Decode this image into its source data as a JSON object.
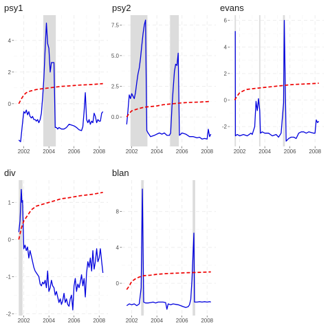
{
  "colors": {
    "series_blue": "#0000dd",
    "series_red": "#ee0000",
    "shading": "#dcdcdc"
  },
  "chart_data": [
    {
      "type": "line",
      "title": "psy1",
      "xlabel": "",
      "ylabel": "",
      "xlim": [
        2001.2,
        2008.7
      ],
      "ylim": [
        -2.7,
        5.6
      ],
      "xticks": [
        2002,
        2004,
        2006,
        2008
      ],
      "yticks": [
        0,
        2,
        4
      ],
      "grid": true,
      "shaded_periods": [
        [
          2003.55,
          2004.55
        ]
      ],
      "series": [
        {
          "color": "#0000dd",
          "style": "solid",
          "x": [
            2001.6,
            2001.75,
            2001.9,
            2002.0,
            2002.1,
            2002.2,
            2002.3,
            2002.4,
            2002.5,
            2002.6,
            2002.7,
            2002.8,
            2002.9,
            2003.0,
            2003.1,
            2003.2,
            2003.3,
            2003.4,
            2003.5,
            2003.6,
            2003.7,
            2003.8,
            2003.9,
            2004.0,
            2004.1,
            2004.2,
            2004.3,
            2004.4,
            2004.5,
            2004.6,
            2004.7,
            2004.8,
            2005.0,
            2005.2,
            2005.4,
            2005.6,
            2005.8,
            2006.0,
            2006.2,
            2006.4,
            2006.6,
            2006.7,
            2006.8,
            2006.9,
            2007.0,
            2007.1,
            2007.2,
            2007.3,
            2007.4,
            2007.5,
            2007.6,
            2007.7,
            2007.8,
            2007.9,
            2008.0,
            2008.1,
            2008.2,
            2008.3
          ],
          "y": [
            -2.3,
            -2.4,
            -1.2,
            -0.5,
            -0.6,
            -0.4,
            -0.7,
            -0.5,
            -0.8,
            -0.9,
            -0.8,
            -1.0,
            -1.0,
            -1.1,
            -1.0,
            -1.2,
            -1.0,
            -0.6,
            0.4,
            1.6,
            3.5,
            5.1,
            3.8,
            3.5,
            2.0,
            2.6,
            2.6,
            2.6,
            -1.5,
            -1.5,
            -1.6,
            -1.5,
            -1.6,
            -1.6,
            -1.5,
            -1.3,
            -1.35,
            -1.4,
            -1.5,
            -1.65,
            -1.7,
            -1.45,
            -0.5,
            0.7,
            -1.0,
            -1.2,
            -1.0,
            -1.3,
            -1.1,
            -1.2,
            -0.6,
            -0.8,
            -1.2,
            -1.0,
            -1.1,
            -1.1,
            -0.6,
            -0.5
          ]
        },
        {
          "color": "#ee0000",
          "style": "dashed",
          "x": [
            2001.6,
            2001.8,
            2002.0,
            2002.2,
            2002.5,
            2003.0,
            2003.5,
            2004.0,
            2004.5,
            2005.0,
            2005.5,
            2006.0,
            2006.5,
            2007.0,
            2007.5,
            2008.0,
            2008.3
          ],
          "y": [
            0.0,
            0.3,
            0.55,
            0.7,
            0.8,
            0.9,
            0.95,
            1.0,
            1.05,
            1.1,
            1.12,
            1.15,
            1.18,
            1.2,
            1.22,
            1.25,
            1.27
          ]
        }
      ]
    },
    {
      "type": "line",
      "title": "psy2",
      "xlabel": "",
      "ylabel": "",
      "xlim": [
        2001.2,
        2008.7
      ],
      "ylim": [
        -2.4,
        8.3
      ],
      "xticks": [
        2002,
        2004,
        2006,
        2008
      ],
      "yticks": [
        0.0,
        2.5,
        5.0,
        7.5
      ],
      "grid": true,
      "shaded_periods": [
        [
          2001.9,
          2003.25
        ],
        [
          2005.05,
          2005.75
        ]
      ],
      "series": [
        {
          "color": "#0000dd",
          "style": "solid",
          "x": [
            2001.6,
            2001.7,
            2001.8,
            2001.9,
            2002.0,
            2002.1,
            2002.2,
            2002.3,
            2002.4,
            2002.5,
            2002.6,
            2002.7,
            2002.8,
            2002.9,
            2003.0,
            2003.1,
            2003.2,
            2003.3,
            2003.5,
            2003.8,
            2004.0,
            2004.2,
            2004.4,
            2004.6,
            2004.8,
            2005.0,
            2005.1,
            2005.2,
            2005.3,
            2005.4,
            2005.5,
            2005.6,
            2005.7,
            2005.8,
            2005.9,
            2006.0,
            2006.3,
            2006.6,
            2006.9,
            2007.2,
            2007.4,
            2007.6,
            2007.8,
            2008.0,
            2008.1,
            2008.2,
            2008.3
          ],
          "y": [
            -0.6,
            0.5,
            1.8,
            1.5,
            1.9,
            1.7,
            1.5,
            2.0,
            2.8,
            3.5,
            4.0,
            4.8,
            5.8,
            6.8,
            7.5,
            7.9,
            -1.1,
            -1.3,
            -1.6,
            -1.5,
            -1.4,
            -1.3,
            -1.4,
            -1.3,
            -1.5,
            -1.5,
            -1.3,
            0.8,
            2.3,
            3.7,
            4.3,
            4.2,
            5.2,
            -1.5,
            -1.4,
            -1.3,
            -1.4,
            -1.6,
            -1.6,
            -1.7,
            -1.65,
            -1.8,
            -1.75,
            -1.8,
            -1.0,
            -1.6,
            -1.4
          ]
        },
        {
          "color": "#ee0000",
          "style": "dashed",
          "x": [
            2001.6,
            2001.8,
            2002.0,
            2002.3,
            2002.6,
            2003.0,
            2003.5,
            2004.0,
            2004.5,
            2005.0,
            2005.5,
            2006.0,
            2006.5,
            2007.0,
            2007.5,
            2008.0,
            2008.3
          ],
          "y": [
            0.0,
            0.3,
            0.5,
            0.6,
            0.7,
            0.8,
            0.85,
            0.9,
            1.0,
            1.05,
            1.1,
            1.15,
            1.18,
            1.2,
            1.22,
            1.25,
            1.27
          ]
        }
      ]
    },
    {
      "type": "line",
      "title": "evans",
      "xlabel": "",
      "ylabel": "",
      "xlim": [
        2001.2,
        2008.7
      ],
      "ylim": [
        -3.5,
        6.4
      ],
      "xticks": [
        2002,
        2004,
        2006,
        2008
      ],
      "yticks": [
        -2,
        0,
        2,
        4,
        6
      ],
      "grid": true,
      "shaded_periods": [
        [
          2001.6,
          2001.7
        ],
        [
          2003.55,
          2003.65
        ],
        [
          2005.45,
          2005.6
        ]
      ],
      "series": [
        {
          "color": "#0000dd",
          "style": "solid",
          "x": [
            2001.65,
            2001.66,
            2001.8,
            2002.0,
            2002.3,
            2002.6,
            2002.9,
            2003.0,
            2003.2,
            2003.3,
            2003.4,
            2003.5,
            2003.6,
            2003.65,
            2003.8,
            2004.0,
            2004.3,
            2004.6,
            2004.9,
            2005.1,
            2005.3,
            2005.5,
            2005.55,
            2005.7,
            2005.9,
            2006.1,
            2006.3,
            2006.5,
            2006.7,
            2006.9,
            2007.1,
            2007.3,
            2007.5,
            2007.7,
            2007.9,
            2008.0,
            2008.1,
            2008.2,
            2008.3
          ],
          "y": [
            5.2,
            -2.7,
            -2.6,
            -2.7,
            -2.6,
            -2.7,
            -2.5,
            -2.6,
            -2.0,
            -0.1,
            -0.8,
            0.1,
            -0.8,
            -2.5,
            -2.4,
            -2.5,
            -2.5,
            -2.7,
            -2.6,
            -2.8,
            -2.5,
            -0.2,
            6.0,
            -3.1,
            -2.9,
            -2.8,
            -2.8,
            -2.9,
            -2.5,
            -2.4,
            -2.4,
            -2.5,
            -2.4,
            -2.45,
            -2.5,
            -2.5,
            -1.5,
            -1.7,
            -1.6
          ]
        },
        {
          "color": "#ee0000",
          "style": "dashed",
          "x": [
            2001.6,
            2001.8,
            2002.0,
            2002.3,
            2002.6,
            2003.0,
            2003.5,
            2004.0,
            2004.5,
            2005.0,
            2005.5,
            2006.0,
            2006.5,
            2007.0,
            2007.5,
            2008.0,
            2008.3
          ],
          "y": [
            0.0,
            0.3,
            0.55,
            0.7,
            0.8,
            0.85,
            0.9,
            0.95,
            1.0,
            1.05,
            1.1,
            1.15,
            1.18,
            1.2,
            1.22,
            1.25,
            1.27
          ]
        }
      ]
    },
    {
      "type": "line",
      "title": "div",
      "xlabel": "",
      "ylabel": "",
      "xlim": [
        2001.2,
        2008.7
      ],
      "ylim": [
        -2.05,
        1.6
      ],
      "xticks": [
        2002,
        2004,
        2006,
        2008
      ],
      "yticks": [
        -2,
        -1,
        0,
        1
      ],
      "grid": true,
      "shaded_periods": [
        [
          2001.6,
          2001.9
        ]
      ],
      "series": [
        {
          "color": "#0000dd",
          "style": "solid",
          "x": [
            2001.6,
            2001.7,
            2001.8,
            2001.85,
            2001.9,
            2002.0,
            2002.1,
            2002.2,
            2002.3,
            2002.4,
            2002.5,
            2002.6,
            2002.7,
            2002.8,
            2002.9,
            2003.0,
            2003.1,
            2003.2,
            2003.3,
            2003.4,
            2003.5,
            2003.6,
            2003.7,
            2003.8,
            2003.9,
            2004.0,
            2004.1,
            2004.2,
            2004.3,
            2004.4,
            2004.5,
            2004.6,
            2004.7,
            2004.8,
            2004.9,
            2005.0,
            2005.1,
            2005.2,
            2005.3,
            2005.4,
            2005.5,
            2005.6,
            2005.7,
            2005.8,
            2005.9,
            2006.0,
            2006.1,
            2006.2,
            2006.3,
            2006.4,
            2006.5,
            2006.6,
            2006.7,
            2006.8,
            2006.9,
            2007.0,
            2007.1,
            2007.2,
            2007.3,
            2007.4,
            2007.5,
            2007.6,
            2007.7,
            2007.8,
            2007.9,
            2008.0,
            2008.1,
            2008.2,
            2008.3
          ],
          "y": [
            0.2,
            0.5,
            1.35,
            1.0,
            1.05,
            -0.25,
            -0.15,
            -0.3,
            -0.2,
            -0.5,
            -0.3,
            -0.45,
            -0.6,
            -0.75,
            -0.85,
            -0.9,
            -0.95,
            -1.0,
            -1.2,
            -1.25,
            -1.15,
            -1.2,
            -1.1,
            -1.3,
            -0.85,
            -1.4,
            -1.3,
            -1.1,
            -1.25,
            -1.3,
            -1.5,
            -1.4,
            -1.55,
            -1.7,
            -1.6,
            -1.75,
            -1.65,
            -1.45,
            -1.7,
            -1.6,
            -1.75,
            -1.8,
            -1.6,
            -1.5,
            -1.9,
            -1.25,
            -1.05,
            -1.4,
            -1.2,
            -1.3,
            -1.15,
            -0.95,
            -1.25,
            -1.05,
            -1.55,
            -0.9,
            -0.6,
            -0.75,
            -0.5,
            -0.85,
            -0.3,
            -0.8,
            -0.6,
            -0.25,
            -0.6,
            -0.5,
            -0.25,
            -0.6,
            -0.9
          ]
        },
        {
          "color": "#ee0000",
          "style": "dashed",
          "x": [
            2001.6,
            2001.8,
            2002.0,
            2002.3,
            2002.6,
            2003.0,
            2003.5,
            2004.0,
            2004.5,
            2005.0,
            2005.5,
            2006.0,
            2006.5,
            2007.0,
            2007.5,
            2008.0,
            2008.3
          ],
          "y": [
            0.0,
            0.3,
            0.5,
            0.65,
            0.8,
            0.9,
            0.95,
            1.0,
            1.05,
            1.1,
            1.12,
            1.15,
            1.18,
            1.2,
            1.22,
            1.25,
            1.27
          ]
        }
      ]
    },
    {
      "type": "line",
      "title": "blan",
      "xlabel": "",
      "ylabel": "",
      "xlim": [
        2001.2,
        2008.7
      ],
      "ylim": [
        -3.6,
        11.5
      ],
      "xticks": [
        2002,
        2004,
        2006,
        2008
      ],
      "yticks": [
        0,
        4,
        8
      ],
      "grid": true,
      "shaded_periods": [
        [
          2002.75,
          2002.95
        ],
        [
          2006.85,
          2007.05
        ]
      ],
      "series": [
        {
          "color": "#0000dd",
          "style": "solid",
          "x": [
            2001.6,
            2001.8,
            2002.0,
            2002.2,
            2002.4,
            2002.6,
            2002.75,
            2002.85,
            2002.95,
            2003.1,
            2003.3,
            2003.5,
            2003.7,
            2003.9,
            2004.1,
            2004.3,
            2004.5,
            2004.7,
            2004.8,
            2004.9,
            2005.1,
            2005.3,
            2005.5,
            2005.7,
            2005.9,
            2006.1,
            2006.3,
            2006.5,
            2006.6,
            2006.7,
            2006.8,
            2006.95,
            2007.0,
            2007.2,
            2007.4,
            2007.6,
            2007.8,
            2008.0,
            2008.2,
            2008.3
          ],
          "y": [
            -2.5,
            -2.3,
            -2.4,
            -2.3,
            -2.5,
            -2.3,
            -0.5,
            10.5,
            -2.1,
            -2.2,
            -2.2,
            -2.15,
            -2.1,
            -2.2,
            -2.1,
            -2.1,
            -2.1,
            -2.15,
            -2.9,
            -2.3,
            -2.4,
            -2.3,
            -2.35,
            -2.4,
            -2.5,
            -2.6,
            -2.7,
            -2.6,
            -2.4,
            -1.8,
            0.5,
            5.6,
            -2.1,
            -2.1,
            -2.05,
            -2.1,
            -2.05,
            -2.1,
            -2.05,
            -2.1
          ]
        },
        {
          "color": "#ee0000",
          "style": "dashed",
          "x": [
            2001.6,
            2001.8,
            2002.0,
            2002.3,
            2002.6,
            2003.0,
            2003.5,
            2004.0,
            2004.5,
            2005.0,
            2005.5,
            2006.0,
            2006.5,
            2007.0,
            2007.5,
            2008.0,
            2008.3
          ],
          "y": [
            -0.7,
            -0.3,
            0.2,
            0.5,
            0.7,
            0.85,
            0.9,
            1.0,
            1.05,
            1.1,
            1.12,
            1.15,
            1.18,
            1.2,
            1.22,
            1.25,
            1.27
          ]
        }
      ]
    }
  ]
}
